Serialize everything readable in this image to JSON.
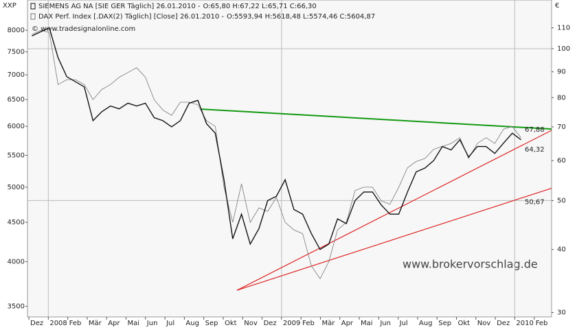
{
  "chart_data": {
    "type": "line",
    "left_axis_label": "XXP",
    "right_axis_label": "€",
    "copyright": "© www.tradesignalonline.com",
    "watermark": "www.brokervorschlag.de",
    "log_scale": true,
    "xlim": [
      -1,
      119
    ],
    "xticks": [
      {
        "value": -0.68,
        "label": "Dez"
      },
      {
        "value": 3.77,
        "label": "2008"
      },
      {
        "value": 8.22,
        "label": "Feb"
      },
      {
        "value": 12.67,
        "label": "Mär"
      },
      {
        "value": 17.12,
        "label": "Apr"
      },
      {
        "value": 21.57,
        "label": "Mai"
      },
      {
        "value": 26.02,
        "label": "Jun"
      },
      {
        "value": 30.47,
        "label": "Jul"
      },
      {
        "value": 34.92,
        "label": "Aug"
      },
      {
        "value": 39.37,
        "label": "Sep"
      },
      {
        "value": 43.82,
        "label": "Okt"
      },
      {
        "value": 48.27,
        "label": "Nov"
      },
      {
        "value": 52.72,
        "label": "Dez"
      },
      {
        "value": 57.17,
        "label": "2009"
      },
      {
        "value": 61.62,
        "label": "Feb"
      },
      {
        "value": 66.07,
        "label": "Mär"
      },
      {
        "value": 70.52,
        "label": "Apr"
      },
      {
        "value": 74.97,
        "label": "Mai"
      },
      {
        "value": 79.42,
        "label": "Jun"
      },
      {
        "value": 83.87,
        "label": "Jul"
      },
      {
        "value": 88.32,
        "label": "Aug"
      },
      {
        "value": 92.77,
        "label": "Sep"
      },
      {
        "value": 97.22,
        "label": "Okt"
      },
      {
        "value": 101.67,
        "label": "Nov"
      },
      {
        "value": 106.12,
        "label": "Dez"
      },
      {
        "value": 110.57,
        "label": "2010"
      },
      {
        "value": 115.02,
        "label": "Feb"
      }
    ],
    "ylim": [
      3390,
      8760
    ],
    "yticks": [
      8000,
      7500,
      7000,
      6500,
      6000,
      5500,
      5000,
      4500,
      4000,
      3500
    ],
    "y2lim": [
      29.4,
      124.9
    ],
    "y2ticks": [
      110,
      100,
      90,
      80,
      70,
      60,
      50,
      40,
      30
    ],
    "y2grid": [
      100,
      50
    ],
    "x": [
      0,
      2,
      4,
      6,
      8,
      10,
      12,
      14,
      16,
      18,
      20,
      22,
      24,
      26,
      28,
      30,
      32,
      34,
      36,
      38,
      40,
      42,
      44,
      46,
      48,
      50,
      52,
      54,
      56,
      58,
      60,
      62,
      64,
      66,
      68,
      70,
      72,
      74,
      76,
      78,
      80,
      82,
      84,
      86,
      88,
      90,
      92,
      94,
      96,
      98,
      100,
      102,
      104,
      106,
      108,
      110,
      112
    ],
    "series": [
      {
        "name": "SIEMENS AG NA [SIE GER  Täglich] 26.01.2010 -",
        "quote": "O:65,80 H:67,22 L:65,71 C:66,30",
        "quote_color": "#119911",
        "color": "#111111",
        "width": 1.4,
        "axis": "y2",
        "values": [
          106,
          108,
          110,
          96,
          88,
          86,
          84,
          72,
          75,
          77,
          76,
          78,
          77,
          78,
          73,
          72,
          70,
          72,
          78,
          79,
          71,
          68,
          55,
          42,
          47,
          41,
          44,
          50,
          51,
          55,
          48,
          47,
          43,
          40,
          41,
          46,
          45,
          50,
          52,
          52,
          49,
          47,
          47,
          52,
          57,
          58,
          60,
          64,
          63,
          66,
          61,
          64,
          64,
          62,
          65,
          68,
          66
        ]
      },
      {
        "name": "DAX Perf. Index [.DAX(2)  Täglich] [Close] 26.01.2010 -",
        "quote": "O:5593,94 H:5618,48 L:5574,46 C:5604,87",
        "quote_color": "#cc2222",
        "color": "#777777",
        "width": 0.8,
        "axis": "y",
        "values": [
          7900,
          8000,
          7950,
          6800,
          6900,
          6900,
          6800,
          6500,
          6700,
          6800,
          6950,
          7050,
          7150,
          6950,
          6500,
          6300,
          6200,
          6450,
          6450,
          6400,
          6100,
          6000,
          5000,
          4500,
          5050,
          4500,
          4700,
          4650,
          4850,
          4500,
          4400,
          4350,
          3950,
          3800,
          4000,
          4400,
          4500,
          4950,
          5000,
          5000,
          4800,
          4750,
          5000,
          5300,
          5400,
          5450,
          5600,
          5650,
          5700,
          5800,
          5450,
          5700,
          5800,
          5700,
          5950,
          6000,
          5800
        ]
      }
    ],
    "trendlines": [
      {
        "label": "67,88",
        "color": "#119911",
        "start": [
          38.8,
          75.9
        ],
        "end": [
          119,
          69.3
        ]
      },
      {
        "label": "64,32",
        "color": "#dd2222",
        "start": [
          46.96,
          33.2
        ],
        "end": [
          119,
          68.9
        ]
      },
      {
        "label": "50,67",
        "color": "#dd2222",
        "start": [
          46.96,
          33.2
        ],
        "end": [
          119,
          52.9
        ]
      }
    ]
  }
}
